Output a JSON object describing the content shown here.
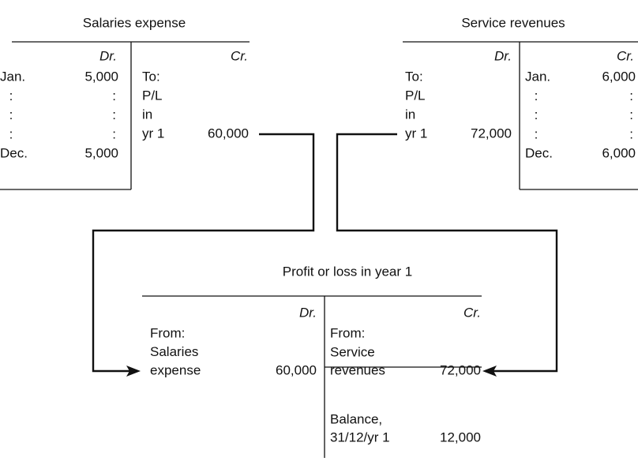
{
  "accounts": [
    {
      "title": "Salaries expense",
      "debit": {
        "header": "Dr.",
        "rows": [
          {
            "label": "Jan.",
            "amount": "5,000"
          },
          {
            "label": ":",
            "amount": ":"
          },
          {
            "label": ":",
            "amount": ":"
          },
          {
            "label": ":",
            "amount": ":"
          },
          {
            "label": "Dec.",
            "amount": "5,000"
          }
        ]
      },
      "credit": {
        "header": "Cr.",
        "rows": [
          {
            "label": "To:"
          },
          {
            "label": "P/L"
          },
          {
            "label": "in"
          },
          {
            "label": "yr 1",
            "amount": "60,000"
          }
        ]
      }
    },
    {
      "title": "Service revenues",
      "debit": {
        "header": "Dr.",
        "rows": [
          {
            "label": "To:"
          },
          {
            "label": "P/L"
          },
          {
            "label": "in"
          },
          {
            "label": "yr 1",
            "amount": "72,000"
          }
        ]
      },
      "credit": {
        "header": "Cr.",
        "rows": [
          {
            "label": "Jan.",
            "amount": "6,000"
          },
          {
            "label": ":",
            "amount": ":"
          },
          {
            "label": ":",
            "amount": ":"
          },
          {
            "label": ":",
            "amount": ":"
          },
          {
            "label": "Dec.",
            "amount": "6,000"
          }
        ]
      }
    },
    {
      "title": "Profit or loss in year 1",
      "debit": {
        "header": "Dr.",
        "rows": [
          {
            "label": "From:"
          },
          {
            "label": "Salaries"
          },
          {
            "label": "expense",
            "amount": "60,000"
          }
        ]
      },
      "credit": {
        "header": "Cr.",
        "rows": [
          {
            "label": "From:"
          },
          {
            "label": "Service"
          },
          {
            "label": "revenues",
            "amount": "72,000"
          },
          {
            "label": "Balance,"
          },
          {
            "label": "31/12/yr 1",
            "amount": "12,000"
          }
        ]
      }
    }
  ]
}
